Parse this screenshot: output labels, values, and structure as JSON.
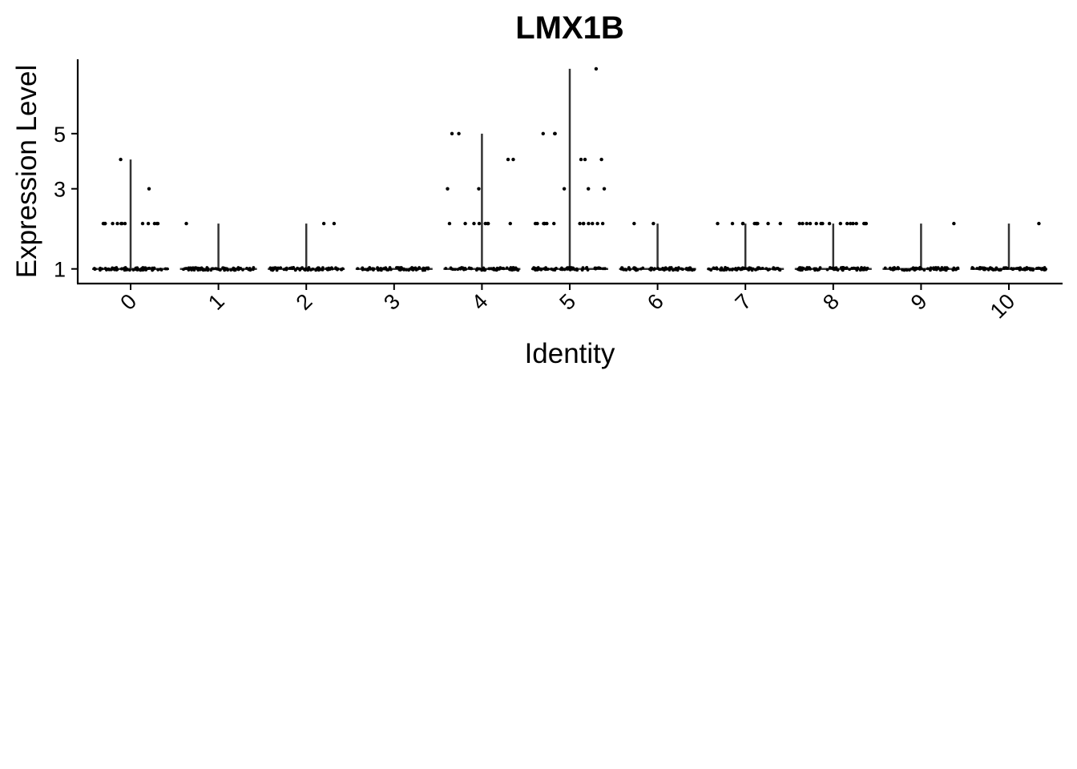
{
  "chart_data": {
    "type": "violin",
    "title": "LMX1B",
    "xlabel": "Identity",
    "ylabel": "Expression Level",
    "categories": [
      "0",
      "1",
      "2",
      "3",
      "4",
      "5",
      "6",
      "7",
      "8",
      "9",
      "10"
    ],
    "y_scale": "sqrt",
    "y_ticks": [
      1,
      3,
      5
    ],
    "ylim": [
      0.75,
      8.5
    ],
    "max_values": [
      4,
      2,
      2,
      1,
      5,
      8,
      2,
      2,
      2,
      2,
      2
    ],
    "level_points": [
      {
        "cluster": "0",
        "level": 2,
        "count": 14
      },
      {
        "cluster": "0",
        "level": 3,
        "count": 1
      },
      {
        "cluster": "0",
        "level": 4,
        "count": 1
      },
      {
        "cluster": "1",
        "level": 2,
        "count": 1
      },
      {
        "cluster": "2",
        "level": 2,
        "count": 2
      },
      {
        "cluster": "4",
        "level": 2,
        "count": 8
      },
      {
        "cluster": "4",
        "level": 3,
        "count": 2
      },
      {
        "cluster": "4",
        "level": 4,
        "count": 2
      },
      {
        "cluster": "4",
        "level": 5,
        "count": 2
      },
      {
        "cluster": "5",
        "level": 2,
        "count": 14
      },
      {
        "cluster": "5",
        "level": 3,
        "count": 3
      },
      {
        "cluster": "5",
        "level": 4,
        "count": 3
      },
      {
        "cluster": "5",
        "level": 5,
        "count": 3
      },
      {
        "cluster": "5",
        "level": 8,
        "count": 1
      },
      {
        "cluster": "6",
        "level": 2,
        "count": 2
      },
      {
        "cluster": "7",
        "level": 2,
        "count": 11
      },
      {
        "cluster": "8",
        "level": 2,
        "count": 16
      },
      {
        "cluster": "9",
        "level": 2,
        "count": 1
      },
      {
        "cluster": "10",
        "level": 2,
        "count": 1
      }
    ],
    "grid": false,
    "legend": "none"
  }
}
